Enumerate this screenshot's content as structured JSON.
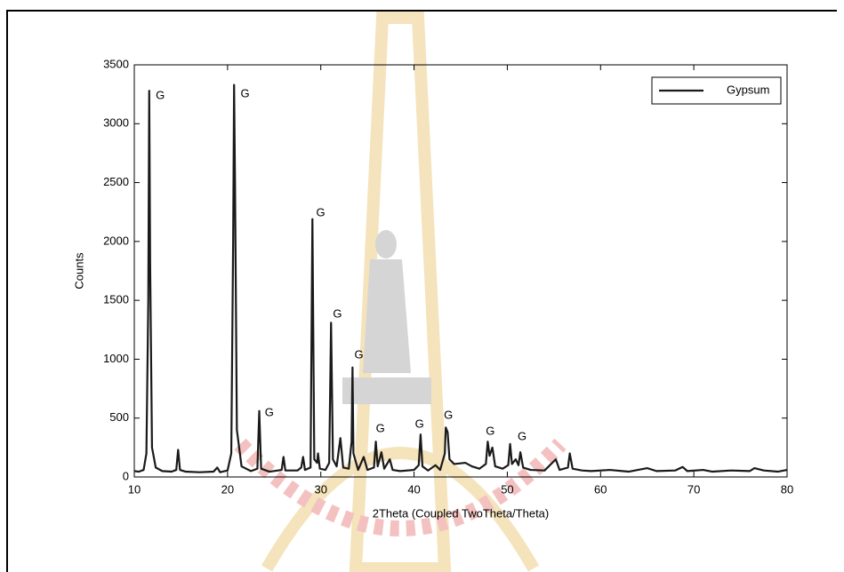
{
  "chart_data": {
    "type": "line",
    "xlabel": "2Theta (Coupled TwoTheta/Theta)",
    "ylabel": "Counts",
    "x": [
      10,
      10.5,
      11,
      11.3,
      11.5,
      11.6,
      11.7,
      11.9,
      12.3,
      13,
      14,
      14.5,
      14.7,
      14.9,
      15.5,
      17,
      18.5,
      18.9,
      19.2,
      20,
      20.4,
      20.6,
      20.7,
      20.8,
      21,
      21.5,
      22.5,
      23.2,
      23.4,
      23.6,
      24.5,
      25.8,
      26,
      26.2,
      27.5,
      27.9,
      28.1,
      28.3,
      28.9,
      29.1,
      29.3,
      29.6,
      29.7,
      29.9,
      30.5,
      30.9,
      31.1,
      31.3,
      31.7,
      32.1,
      32.4,
      33,
      33.3,
      33.4,
      33.5,
      34,
      34.6,
      35,
      35.7,
      35.9,
      36.1,
      36.5,
      36.8,
      37.4,
      37.7,
      38.5,
      40,
      40.5,
      40.7,
      40.9,
      41.5,
      42.3,
      42.8,
      43.3,
      43.4,
      43.6,
      43.8,
      44.3,
      45.5,
      46.2,
      47,
      47.7,
      47.9,
      48.1,
      48.4,
      48.7,
      49.5,
      50.1,
      50.3,
      50.5,
      50.9,
      51.2,
      51.4,
      51.7,
      52.5,
      54,
      55.2,
      55.6,
      56.5,
      56.7,
      57,
      58,
      59,
      61,
      63,
      65,
      66,
      68,
      68.8,
      69.3,
      71,
      72,
      74,
      76,
      76.5,
      77.5,
      79,
      80
    ],
    "series": [
      {
        "name": "Gypsum",
        "color": "#1a1a1a",
        "values": [
          50,
          45,
          60,
          200,
          1500,
          3280,
          1800,
          250,
          80,
          50,
          45,
          60,
          230,
          60,
          45,
          40,
          45,
          80,
          40,
          55,
          200,
          2000,
          3330,
          2500,
          400,
          90,
          50,
          70,
          560,
          70,
          45,
          60,
          170,
          55,
          55,
          80,
          170,
          60,
          80,
          2190,
          150,
          120,
          200,
          70,
          60,
          120,
          1310,
          150,
          90,
          330,
          80,
          70,
          300,
          930,
          200,
          60,
          170,
          60,
          80,
          300,
          90,
          210,
          70,
          150,
          60,
          50,
          60,
          100,
          360,
          90,
          55,
          100,
          60,
          200,
          420,
          380,
          150,
          110,
          120,
          90,
          70,
          110,
          300,
          180,
          250,
          90,
          70,
          100,
          280,
          110,
          150,
          100,
          210,
          80,
          60,
          55,
          150,
          60,
          80,
          200,
          70,
          55,
          50,
          60,
          45,
          75,
          50,
          55,
          85,
          50,
          60,
          45,
          55,
          50,
          75,
          55,
          45,
          60
        ]
      }
    ],
    "annotations": [
      {
        "text": "G",
        "x": 12.3,
        "y": 3235
      },
      {
        "text": "G",
        "x": 21.4,
        "y": 3250
      },
      {
        "text": "G",
        "x": 24,
        "y": 543
      },
      {
        "text": "G",
        "x": 29.5,
        "y": 2240
      },
      {
        "text": "G",
        "x": 31.3,
        "y": 1380
      },
      {
        "text": "G",
        "x": 33.6,
        "y": 1033
      },
      {
        "text": "G",
        "x": 35.9,
        "y": 407
      },
      {
        "text": "G",
        "x": 40.1,
        "y": 445
      },
      {
        "text": "G",
        "x": 43.2,
        "y": 520
      },
      {
        "text": "G",
        "x": 47.7,
        "y": 385
      },
      {
        "text": "G",
        "x": 51.1,
        "y": 340
      }
    ],
    "xlim": [
      10,
      80
    ],
    "xticks": [
      10,
      20,
      30,
      40,
      50,
      60,
      70,
      80
    ],
    "ylim": [
      0,
      3500
    ],
    "yticks": [
      0,
      500,
      1000,
      1500,
      2000,
      2500,
      3000,
      3500
    ],
    "grid": false,
    "legend": "upper right"
  }
}
